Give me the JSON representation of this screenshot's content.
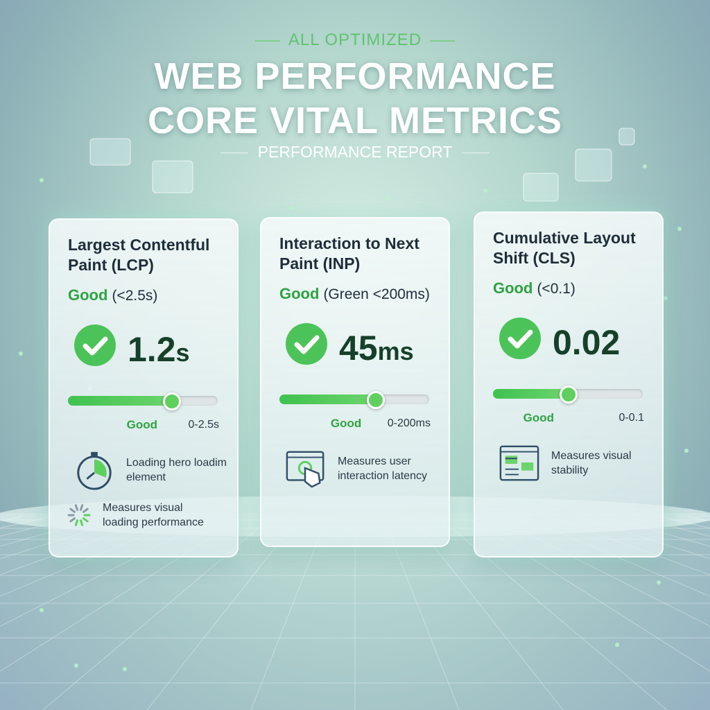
{
  "header": {
    "eyebrow": "ALL OPTIMIZED",
    "title": [
      "WEB PERFORMANCE",
      "CORE VITAL METRICS"
    ],
    "subtitle": "PERFORMANCE REPORT"
  },
  "cards": [
    {
      "title": "Largest Contentful Paint (LCP)",
      "status": "Good",
      "threshold": "(<2.5s)",
      "value": "1.2",
      "unit": "s",
      "scale_status": "Good",
      "scale_range": "0-2.5s",
      "details": [
        "Loading hero loadim element",
        "Measures visual loading performance"
      ]
    },
    {
      "title": "Interaction to Next Paint (INP)",
      "status": "Good",
      "threshold": "(Green <200ms)",
      "value": "45",
      "unit": "ms",
      "scale_status": "Good",
      "scale_range": "0-200ms",
      "details": [
        "Measures user interaction latency"
      ]
    },
    {
      "title": "Cumulative Layout Shift (CLS)",
      "status": "Good",
      "threshold": "(<0.1)",
      "value": "0.02",
      "unit": "",
      "scale_status": "Good",
      "scale_range": "0-0.1",
      "details": [
        "Measures visual stability"
      ]
    }
  ]
}
